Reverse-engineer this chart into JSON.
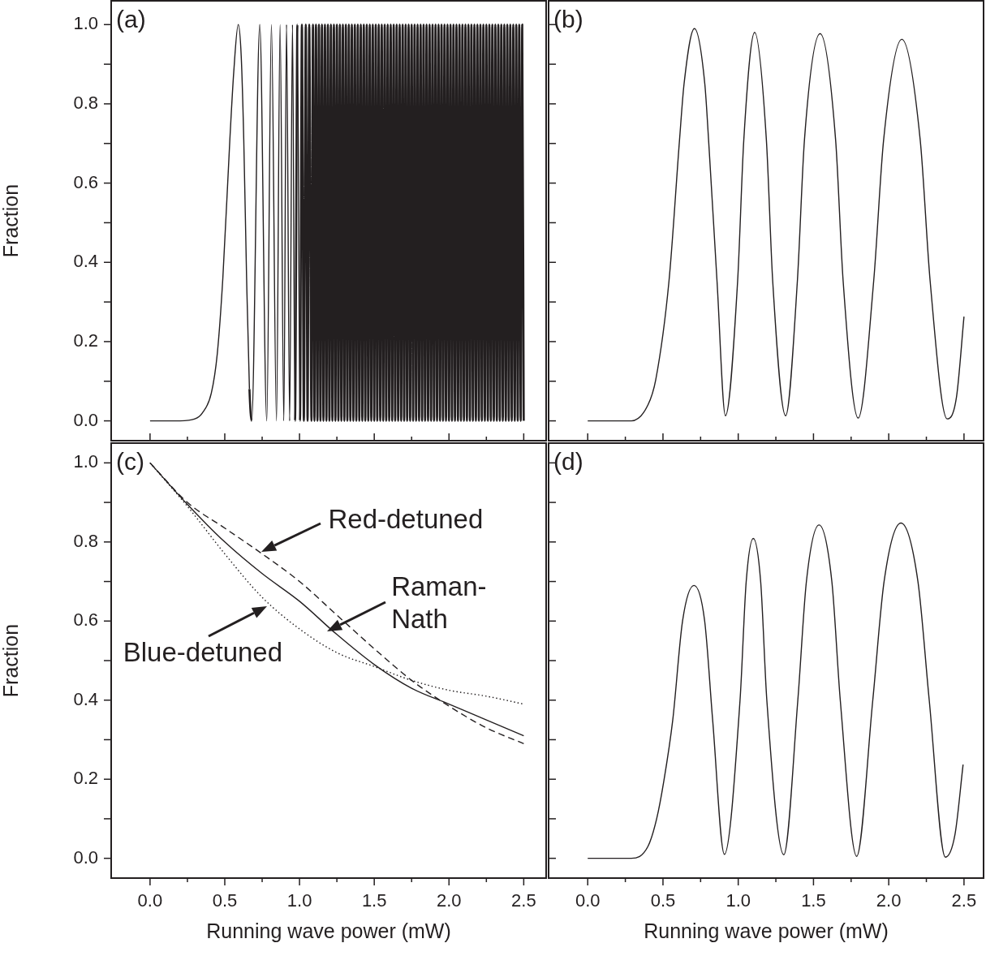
{
  "chart_data": [
    {
      "type": "line",
      "title": "(a)",
      "ylabel": "Fraction",
      "marker": "none",
      "tick_labels": "y",
      "xlim": [
        -0.26,
        2.65
      ],
      "ylim": [
        -0.05,
        1.06
      ],
      "xticks": [
        {
          "value": 0,
          "label": null
        },
        {
          "value": 0.25,
          "label": null
        },
        {
          "value": 0.5,
          "label": null
        },
        {
          "value": 0.75,
          "label": null
        },
        {
          "value": 1,
          "label": null
        },
        {
          "value": 1.25,
          "label": null
        },
        {
          "value": 1.5,
          "label": null
        },
        {
          "value": 1.75,
          "label": null
        },
        {
          "value": 2,
          "label": null
        },
        {
          "value": 2.25,
          "label": null
        },
        {
          "value": 2.5,
          "label": null
        }
      ],
      "yticks": [
        {
          "value": 0,
          "label": "0.0"
        },
        {
          "value": 0.1,
          "label": null
        },
        {
          "value": 0.2,
          "label": "0.2"
        },
        {
          "value": 0.3,
          "label": null
        },
        {
          "value": 0.4,
          "label": "0.4"
        },
        {
          "value": 0.5,
          "label": null
        },
        {
          "value": 0.6,
          "label": "0.6"
        },
        {
          "value": 0.7,
          "label": null
        },
        {
          "value": 0.8,
          "label": "0.8"
        },
        {
          "value": 0.9,
          "label": null
        },
        {
          "value": 1,
          "label": "1.0"
        }
      ],
      "x": [
        0,
        0.2,
        0.3,
        0.35,
        0.41,
        0.45,
        0.487,
        0.534,
        0.56,
        0.59,
        0.61,
        0.627,
        0.646,
        0.665,
        0.68,
        0.734,
        0.781,
        0.812,
        0.846,
        0.87,
        0.895,
        0.913,
        0.934,
        0.953,
        0.97,
        0.986,
        1.003,
        1.016,
        1.029,
        1.042,
        1.054,
        1.065,
        1.08,
        1.09,
        1.1,
        1.11,
        1.12,
        1.13,
        1.14,
        1.15,
        1.16,
        1.17,
        1.18,
        1.19,
        1.2,
        1.21,
        1.22,
        1.23,
        1.24,
        1.25,
        1.26,
        1.27,
        1.28,
        1.29,
        1.3,
        1.31,
        1.32,
        1.33,
        1.34,
        1.35,
        1.36,
        1.37,
        1.38,
        1.39,
        1.4,
        1.41,
        1.42,
        1.43,
        1.44,
        1.45,
        1.46,
        1.47,
        1.48,
        1.49,
        1.5,
        1.51,
        1.52,
        1.53,
        1.54,
        1.55,
        1.56,
        1.57,
        1.58,
        1.59,
        1.6,
        1.61,
        1.62,
        1.63,
        1.64,
        1.65,
        1.66,
        1.67,
        1.68,
        1.69,
        1.7,
        1.71,
        1.72,
        1.73,
        1.74,
        1.75,
        1.76,
        1.77,
        1.78,
        1.79,
        1.8,
        1.81,
        1.82,
        1.83,
        1.84,
        1.85,
        1.86,
        1.87,
        1.88,
        1.89,
        1.9,
        1.91,
        1.92,
        1.93,
        1.94,
        1.95,
        1.96,
        1.97,
        1.98,
        1.99,
        2,
        2.01,
        2.02,
        2.03,
        2.04,
        2.05,
        2.06,
        2.07,
        2.08,
        2.09,
        2.1,
        2.11,
        2.12,
        2.13,
        2.14,
        2.15,
        2.16,
        2.17,
        2.18,
        2.19,
        2.2,
        2.21,
        2.22,
        2.23,
        2.24,
        2.25,
        2.26,
        2.27,
        2.28,
        2.29,
        2.3,
        2.31,
        2.32,
        2.33,
        2.34,
        2.35,
        2.36,
        2.37,
        2.38,
        2.39,
        2.4,
        2.41,
        2.42,
        2.43,
        2.44,
        2.45,
        2.46,
        2.47,
        2.48,
        2.49,
        2.5
      ],
      "series": [
        {
          "color": "#231f20",
          "values": [
            0,
            0,
            0.005,
            0.02,
            0.07,
            0.17,
            0.36,
            0.71,
            0.88,
            1,
            0.92,
            0.71,
            0.36,
            0.08,
            0,
            1,
            0,
            1,
            0,
            1,
            0,
            1,
            0,
            1,
            0,
            1,
            0,
            1,
            0,
            1,
            0,
            1,
            0,
            1,
            0,
            1,
            0,
            1,
            0,
            1,
            0,
            1,
            0,
            1,
            0,
            1,
            0,
            1,
            0,
            1,
            0,
            1,
            0,
            1,
            0,
            1,
            0,
            1,
            0,
            1,
            0,
            1,
            0,
            1,
            0,
            1,
            0,
            1,
            0,
            1,
            0,
            1,
            0,
            1,
            0,
            1,
            0,
            1,
            0,
            1,
            0,
            1,
            0,
            1,
            0,
            1,
            0,
            1,
            0,
            1,
            0,
            1,
            0,
            1,
            0,
            1,
            0,
            1,
            0,
            1,
            0,
            1,
            0,
            1,
            0,
            1,
            0,
            1,
            0,
            1,
            0,
            1,
            0,
            1,
            0,
            1,
            0,
            1,
            0,
            1,
            0,
            1,
            0,
            1,
            0,
            1,
            0,
            1,
            0,
            1,
            0,
            1,
            0,
            1,
            0,
            1,
            0,
            1,
            0,
            1,
            0,
            1,
            0,
            1,
            0,
            1,
            0,
            1,
            0,
            1,
            0,
            1,
            0,
            1,
            0,
            1,
            0,
            1,
            0,
            1,
            0,
            1,
            0,
            1,
            0,
            1,
            0,
            1,
            0,
            1,
            0,
            1,
            0,
            1,
            0
          ]
        }
      ]
    },
    {
      "type": "line",
      "title": "(b)",
      "marker": "none",
      "tick_labels": false,
      "xlim": [
        -0.26,
        2.63
      ],
      "ylim": [
        -0.05,
        1.06
      ],
      "xticks": [
        {
          "value": 0,
          "label": null
        },
        {
          "value": 0.25,
          "label": null
        },
        {
          "value": 0.5,
          "label": null
        },
        {
          "value": 0.75,
          "label": null
        },
        {
          "value": 1,
          "label": null
        },
        {
          "value": 1.25,
          "label": null
        },
        {
          "value": 1.5,
          "label": null
        },
        {
          "value": 1.75,
          "label": null
        },
        {
          "value": 2,
          "label": null
        },
        {
          "value": 2.25,
          "label": null
        },
        {
          "value": 2.5,
          "label": null
        }
      ],
      "yticks": [
        {
          "value": 0,
          "label": null
        },
        {
          "value": 0.1,
          "label": null
        },
        {
          "value": 0.2,
          "label": null
        },
        {
          "value": 0.3,
          "label": null
        },
        {
          "value": 0.4,
          "label": null
        },
        {
          "value": 0.5,
          "label": null
        },
        {
          "value": 0.6,
          "label": null
        },
        {
          "value": 0.7,
          "label": null
        },
        {
          "value": 0.8,
          "label": null
        },
        {
          "value": 0.9,
          "label": null
        },
        {
          "value": 1,
          "label": null
        }
      ],
      "x": [
        0,
        0.29,
        0.4,
        0.452,
        0.54,
        0.61,
        0.64,
        0.709,
        0.778,
        0.803,
        0.859,
        0.915,
        0.996,
        1.037,
        1.109,
        1.187,
        1.229,
        1.315,
        1.393,
        1.44,
        1.544,
        1.647,
        1.697,
        1.797,
        1.9,
        1.966,
        2.087,
        2.209,
        2.275,
        2.388,
        2.45,
        2.5
      ],
      "series": [
        {
          "color": "#231f20",
          "values": [
            0,
            0,
            0.04,
            0.104,
            0.353,
            0.709,
            0.85,
            0.99,
            0.85,
            0.709,
            0.353,
            0.013,
            0.353,
            0.709,
            0.98,
            0.709,
            0.353,
            0.013,
            0.353,
            0.709,
            0.977,
            0.709,
            0.353,
            0.007,
            0.353,
            0.709,
            0.963,
            0.709,
            0.353,
            0.005,
            0.06,
            0.263
          ]
        }
      ]
    },
    {
      "type": "line",
      "title": "(c)",
      "xlabel": "Running wave power (mW)",
      "ylabel": "Fraction",
      "marker": "none",
      "xlim": [
        -0.26,
        2.65
      ],
      "ylim": [
        -0.05,
        1.05
      ],
      "xticks": [
        {
          "value": 0,
          "label": "0.0"
        },
        {
          "value": 0.25,
          "label": null
        },
        {
          "value": 0.5,
          "label": "0.5"
        },
        {
          "value": 0.75,
          "label": null
        },
        {
          "value": 1,
          "label": "1.0"
        },
        {
          "value": 1.25,
          "label": null
        },
        {
          "value": 1.5,
          "label": "1.5"
        },
        {
          "value": 1.75,
          "label": null
        },
        {
          "value": 2,
          "label": "2.0"
        },
        {
          "value": 2.25,
          "label": null
        },
        {
          "value": 2.5,
          "label": "2.5"
        }
      ],
      "yticks": [
        {
          "value": 0,
          "label": "0.0"
        },
        {
          "value": 0.1,
          "label": null
        },
        {
          "value": 0.2,
          "label": "0.2"
        },
        {
          "value": 0.3,
          "label": null
        },
        {
          "value": 0.4,
          "label": "0.4"
        },
        {
          "value": 0.5,
          "label": null
        },
        {
          "value": 0.6,
          "label": "0.6"
        },
        {
          "value": 0.7,
          "label": null
        },
        {
          "value": 0.8,
          "label": "0.8"
        },
        {
          "value": 0.9,
          "label": null
        },
        {
          "value": 1,
          "label": "1.0"
        }
      ],
      "x": [
        0,
        0.25,
        0.5,
        0.75,
        1,
        1.25,
        1.5,
        1.75,
        2,
        2.25,
        2.5
      ],
      "series": [
        {
          "color": "#231f20",
          "line_style": "solid",
          "values": [
            1,
            0.895,
            0.8,
            0.72,
            0.65,
            0.566,
            0.49,
            0.43,
            0.39,
            0.35,
            0.31
          ]
        },
        {
          "color": "#231f20",
          "line_style": "dashed",
          "values": [
            1,
            0.9,
            0.835,
            0.77,
            0.7,
            0.615,
            0.53,
            0.45,
            0.385,
            0.33,
            0.29
          ]
        },
        {
          "color": "#231f20",
          "line_style": "dotted",
          "values": [
            1,
            0.89,
            0.77,
            0.66,
            0.58,
            0.52,
            0.485,
            0.45,
            0.425,
            0.41,
            0.39
          ]
        }
      ],
      "annotations": [
        {
          "text": "Red-detuned",
          "x": 0.747,
          "y": 0.774
        },
        {
          "text": "Raman-\nNath",
          "x": 1.185,
          "y": 0.574
        },
        {
          "text": "Blue-detuned",
          "x": 0.781,
          "y": 0.637
        }
      ]
    },
    {
      "type": "line",
      "title": "(d)",
      "xlabel": "Running wave power (mW)",
      "marker": "none",
      "tick_labels": "x",
      "xlim": [
        -0.26,
        2.63
      ],
      "ylim": [
        -0.05,
        1.05
      ],
      "xticks": [
        {
          "value": 0,
          "label": "0.0"
        },
        {
          "value": 0.25,
          "label": null
        },
        {
          "value": 0.5,
          "label": "0.5"
        },
        {
          "value": 0.75,
          "label": null
        },
        {
          "value": 1,
          "label": "1.0"
        },
        {
          "value": 1.25,
          "label": null
        },
        {
          "value": 1.5,
          "label": "1.5"
        },
        {
          "value": 1.75,
          "label": null
        },
        {
          "value": 2,
          "label": "2.0"
        },
        {
          "value": 2.25,
          "label": null
        },
        {
          "value": 2.5,
          "label": "2.5"
        }
      ],
      "yticks": [
        {
          "value": 0,
          "label": null
        },
        {
          "value": 0.1,
          "label": null
        },
        {
          "value": 0.2,
          "label": null
        },
        {
          "value": 0.3,
          "label": null
        },
        {
          "value": 0.4,
          "label": null
        },
        {
          "value": 0.5,
          "label": null
        },
        {
          "value": 0.6,
          "label": null
        },
        {
          "value": 0.7,
          "label": null
        },
        {
          "value": 0.8,
          "label": null
        },
        {
          "value": 0.9,
          "label": null
        },
        {
          "value": 1,
          "label": null
        }
      ],
      "x": [
        0,
        0.29,
        0.4,
        0.458,
        0.505,
        0.565,
        0.63,
        0.706,
        0.777,
        0.83,
        0.908,
        1.012,
        1.053,
        1.1,
        1.149,
        1.19,
        1.303,
        1.396,
        1.453,
        1.537,
        1.622,
        1.678,
        1.787,
        1.894,
        1.969,
        2.081,
        2.194,
        2.269,
        2.376,
        2.44,
        2.494
      ],
      "series": [
        {
          "color": "#231f20",
          "values": [
            0,
            0,
            0.03,
            0.1,
            0.194,
            0.35,
            0.6,
            0.69,
            0.6,
            0.35,
            0.01,
            0.4,
            0.7,
            0.809,
            0.7,
            0.4,
            0.009,
            0.4,
            0.7,
            0.843,
            0.7,
            0.4,
            0.005,
            0.4,
            0.7,
            0.848,
            0.7,
            0.4,
            0.003,
            0.06,
            0.237
          ]
        }
      ]
    }
  ]
}
